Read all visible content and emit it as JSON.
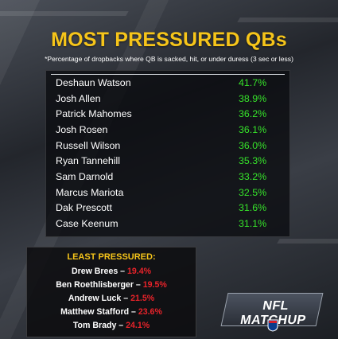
{
  "header": {
    "title": "MOST PRESSURED QBs",
    "subtitle": "*Percentage of dropbacks where QB is sacked, hit, or under duress (3 sec or less)"
  },
  "most_pressured": [
    {
      "name": "Deshaun Watson",
      "pct": "41.7%"
    },
    {
      "name": "Josh Allen",
      "pct": "38.9%"
    },
    {
      "name": "Patrick Mahomes",
      "pct": "36.2%"
    },
    {
      "name": "Josh Rosen",
      "pct": "36.1%"
    },
    {
      "name": "Russell Wilson",
      "pct": "36.0%"
    },
    {
      "name": "Ryan Tannehill",
      "pct": "35.3%"
    },
    {
      "name": "Sam Darnold",
      "pct": "33.2%"
    },
    {
      "name": "Marcus Mariota",
      "pct": "32.5%"
    },
    {
      "name": "Dak Prescott",
      "pct": "31.6%"
    },
    {
      "name": "Case Keenum",
      "pct": "31.1%"
    }
  ],
  "least_pressured": {
    "title": "LEAST PRESSURED:",
    "rows": [
      {
        "name": "Drew Brees",
        "pct": "19.4%"
      },
      {
        "name": "Ben Roethlisberger",
        "pct": "19.5%"
      },
      {
        "name": "Andrew Luck",
        "pct": "21.5%"
      },
      {
        "name": "Matthew Stafford",
        "pct": "23.6%"
      },
      {
        "name": "Tom Brady",
        "pct": "24.1%"
      }
    ]
  },
  "logo": {
    "text": "NFL MATCHUP",
    "icon": "nfl-shield-icon"
  },
  "colors": {
    "title": "#f6c51a",
    "most_value": "#36e22a",
    "least_value": "#e8232a"
  }
}
